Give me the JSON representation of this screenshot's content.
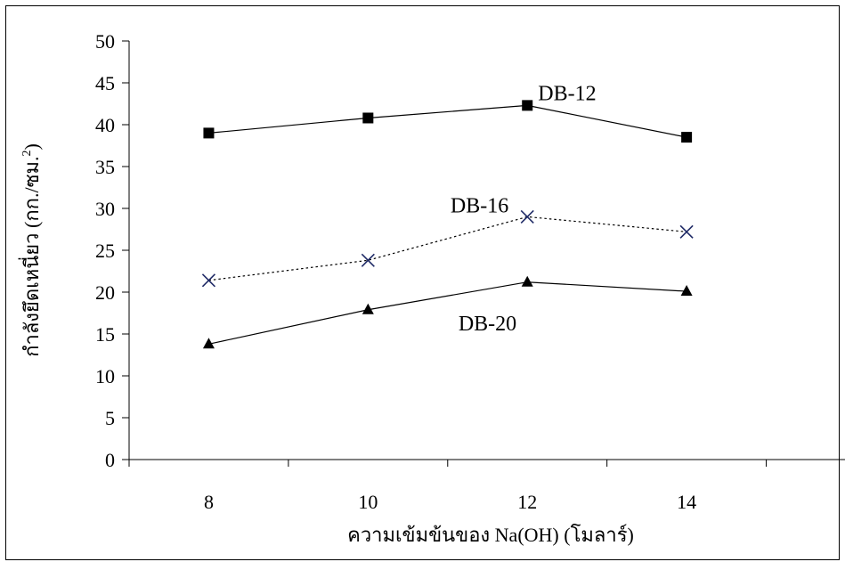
{
  "chart_data": {
    "type": "line",
    "title": "",
    "xlabel": "ความเข้มข้นของ Na(OH) (โมลาร์)",
    "ylabel": "กำลังยึดเหนี่ยว (กก./ซม.",
    "ylabel_superscript": "2",
    "ylabel_suffix": ")",
    "x": [
      8,
      10,
      12,
      14
    ],
    "xlim": [
      7,
      16
    ],
    "ylim": [
      0,
      50
    ],
    "yticks": [
      0,
      5,
      10,
      15,
      20,
      25,
      30,
      35,
      40,
      45,
      50
    ],
    "xticks_labeled": [
      8,
      10,
      12,
      14
    ],
    "grid": false,
    "legend": "none",
    "series": [
      {
        "name": "DB-12",
        "values": [
          39.0,
          40.8,
          42.3,
          38.5
        ],
        "marker": "square",
        "line_style": "solid",
        "color": "#000000",
        "label_at": [
          12.5,
          42.9
        ]
      },
      {
        "name": "DB-16",
        "values": [
          21.4,
          23.8,
          29.0,
          27.2
        ],
        "marker": "x",
        "line_style": "dotted",
        "color": "#000000",
        "marker_color": "#1f2a66",
        "label_at": [
          11.4,
          29.5
        ]
      },
      {
        "name": "DB-20",
        "values": [
          13.8,
          17.9,
          21.2,
          20.1
        ],
        "marker": "triangle",
        "line_style": "solid",
        "color": "#000000",
        "label_at": [
          11.5,
          15.4
        ]
      }
    ]
  }
}
